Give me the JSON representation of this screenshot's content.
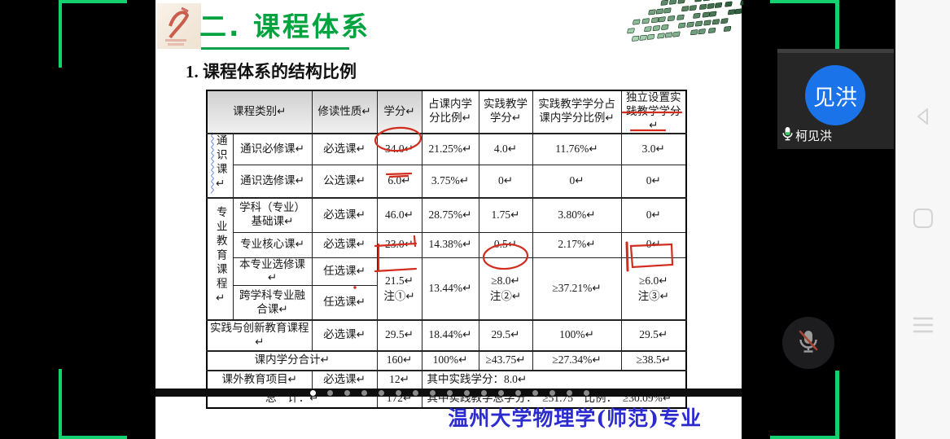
{
  "colors": {
    "bracket_green": "#14d06e",
    "title_green": "#00a33e",
    "avatar_blue": "#1a73e8",
    "footer_blue": "#2b2bd0",
    "annotation_red": "#d22c1e"
  },
  "icons": {
    "tile_mic": "microphone-live-icon",
    "mute_button": "microphone-muted-icon",
    "nav_back": "back-triangle-icon",
    "nav_home": "home-square-icon",
    "nav_recents": "recents-lines-icon"
  },
  "slide": {
    "title": "二. 课程体系",
    "subtitle": "1. 课程体系的结构比例",
    "footer": "温州大学物理学(师范)专业",
    "pagination": {
      "active_index": 0,
      "count": 17
    },
    "table": {
      "header": {
        "category": "课程类别↵",
        "nature": "修读性质↵",
        "credits": "学分↵",
        "in_class_ratio": "占课内学分比例↵",
        "practice_credits": "实践教学学分↵",
        "practice_ratio": "实践教学学分占课内学分比例↵",
        "independent": "独立设置实践教学学分↵"
      },
      "groups": {
        "general": "通识课↵",
        "major": "专业教育课程↵"
      },
      "rows": {
        "general_required": {
          "label": "通识必修课↵",
          "nature": "必选课↵",
          "credits": "34.0↵",
          "ratio": "21.25%↵",
          "practice": "4.0↵",
          "practice_ratio": "11.76%↵",
          "independent": "3.0↵"
        },
        "general_elective": {
          "label": "通识选修课↵",
          "nature": "公选课↵",
          "credits": "6.0↵",
          "ratio": "3.75%↵",
          "practice": "0↵",
          "practice_ratio": "0↵",
          "independent": "0↵"
        },
        "subject_basic": {
          "label": "学科（专业）基础课↵",
          "nature": "必选课↵",
          "credits": "46.0↵",
          "ratio": "28.75%↵",
          "practice": "1.75↵",
          "practice_ratio": "3.80%↵",
          "independent": "0↵"
        },
        "major_core": {
          "label": "专业核心课↵",
          "nature": "必选课↵",
          "credits": "23.0↵",
          "ratio": "14.38%↵",
          "practice": "0.5↵",
          "practice_ratio": "2.17%↵",
          "independent": "0↵"
        },
        "major_elective": {
          "label": "本专业选修课↵",
          "nature": "任选课↵"
        },
        "interdisciplinary": {
          "label": "跨学科专业融合课↵",
          "nature": "任选课↵"
        },
        "elective_merged": {
          "credits": "21.5↵",
          "credits_note": "注①↵",
          "ratio": "13.44%↵",
          "practice": "≥8.0↵",
          "practice_note": "注②↵",
          "practice_ratio": "≥37.21%↵",
          "independent": "≥6.0↵",
          "independent_note": "注③↵"
        },
        "practice_innovation": {
          "label": "实践与创新教育课程↵",
          "nature": "必选课↵",
          "credits": "29.5↵",
          "ratio": "18.44%↵",
          "practice": "29.5↵",
          "practice_ratio": "100%↵",
          "independent": "29.5↵"
        },
        "in_class_total": {
          "label": "课内学分合计↵",
          "credits": "160↵",
          "ratio": "100%↵",
          "practice": "≥43.75↵",
          "practice_ratio": "≥27.34%↵",
          "independent": "≥38.5↵"
        },
        "extracurricular": {
          "label": "课外教育项目↵",
          "nature": "必选课↵",
          "credits": "12↵",
          "summary": "其中实践学分：8.0↵"
        },
        "grand_total": {
          "label": "总　计：↵",
          "credits": "172↵",
          "summary": "其中实践教学总学分：　≥51.75　比例：　≥30.09%↵"
        }
      }
    }
  },
  "meeting": {
    "participant": {
      "avatar_label": "见洪",
      "name": "柯见洪"
    }
  }
}
